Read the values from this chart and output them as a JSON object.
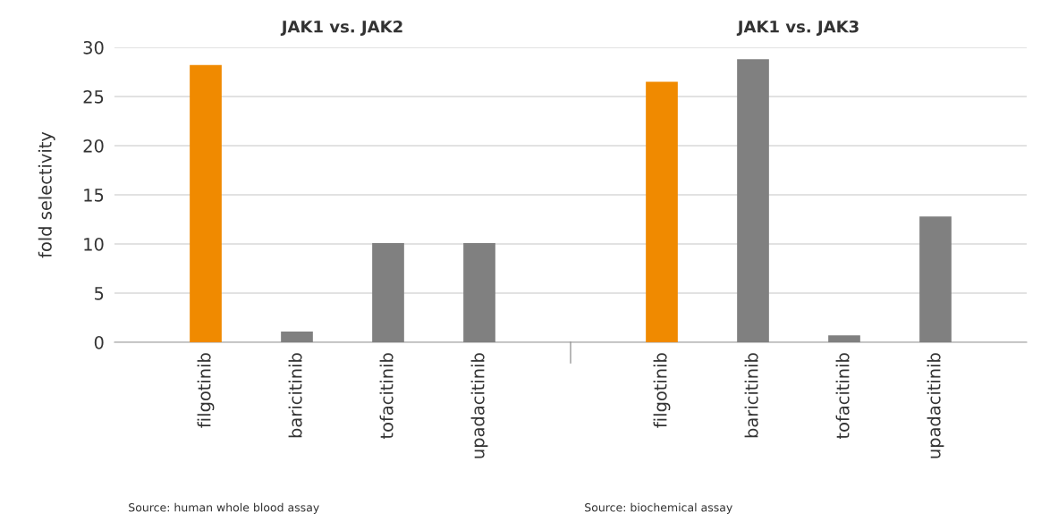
{
  "chart_data": [
    {
      "type": "bar",
      "title": "JAK1 vs. JAK2",
      "ylabel": "fold selectivity",
      "categories": [
        "filgotinib",
        "baricitinib",
        "tofacitinib",
        "upadacitinib"
      ],
      "values": [
        28.2,
        1.1,
        10.1,
        10.1
      ],
      "colors": [
        "#f08a00",
        "#808080",
        "#808080",
        "#808080"
      ],
      "ylim": [
        0,
        30
      ],
      "yticks": [
        0,
        5,
        10,
        15,
        20,
        25,
        30
      ],
      "grid": "y",
      "annotations": [
        "Source: human whole blood assay"
      ]
    },
    {
      "type": "bar",
      "title": "JAK1 vs. JAK3",
      "categories": [
        "filgotinib",
        "baricitinib",
        "tofacitinib",
        "upadacitinib"
      ],
      "values": [
        26.5,
        28.8,
        0.7,
        12.8
      ],
      "colors": [
        "#f08a00",
        "#808080",
        "#808080",
        "#808080"
      ],
      "ylim": [
        0,
        30
      ],
      "yticks": [
        0,
        5,
        10,
        15,
        20,
        25,
        30
      ],
      "grid": "y",
      "tick_labels": "x",
      "annotations": [
        "Source: biochemical assay"
      ]
    }
  ]
}
